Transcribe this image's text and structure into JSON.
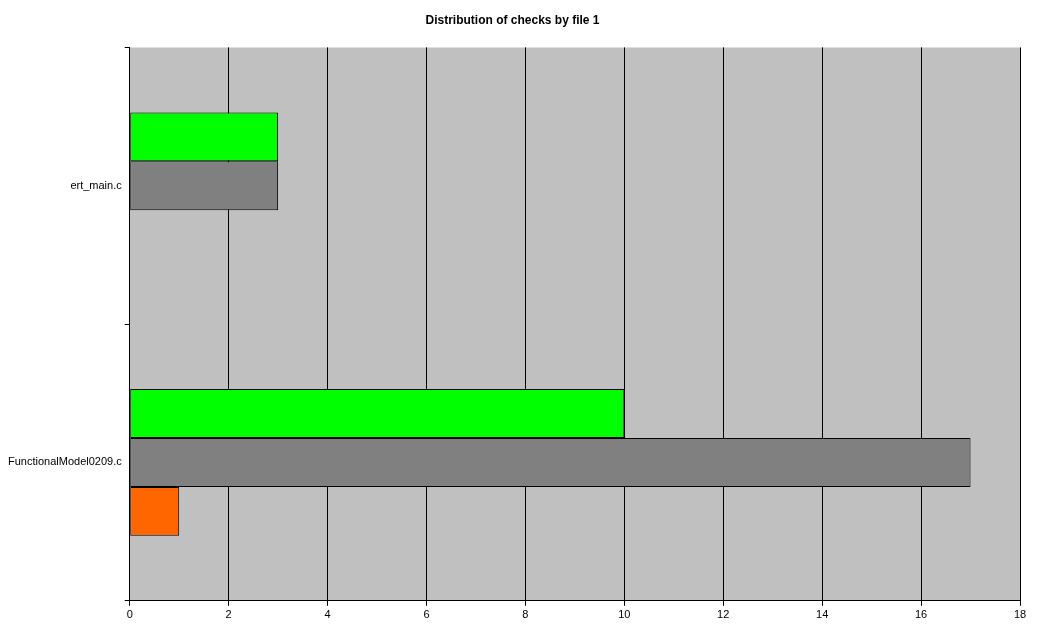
{
  "chart_data": {
    "type": "bar",
    "orientation": "horizontal",
    "title": "Distribution of checks by file 1",
    "categories": [
      "ert_main.c",
      "FunctionalModel0209.c"
    ],
    "series": [
      {
        "color": "#00ff00",
        "values": [
          3,
          10
        ]
      },
      {
        "color": "#808080",
        "values": [
          3,
          17
        ]
      },
      {
        "color": "#ff6600",
        "values": [
          null,
          1
        ]
      }
    ],
    "xlim": [
      0,
      18
    ],
    "xticks": [
      0,
      2,
      4,
      6,
      8,
      10,
      12,
      14,
      16,
      18
    ],
    "grid": "x",
    "legend": false
  }
}
